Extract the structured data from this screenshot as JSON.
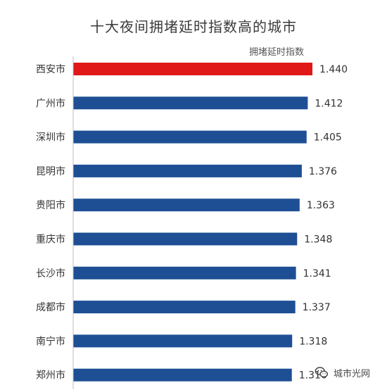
{
  "chart_data": {
    "type": "bar",
    "orientation": "horizontal",
    "title": "十大夜间拥堵延时指数高的城市",
    "legend": "拥堵延时指数",
    "categories": [
      "西安市",
      "广州市",
      "深圳市",
      "昆明市",
      "贵阳市",
      "重庆市",
      "长沙市",
      "成都市",
      "南宁市",
      "郑州市"
    ],
    "values": [
      1.44,
      1.412,
      1.405,
      1.376,
      1.363,
      1.348,
      1.341,
      1.337,
      1.318,
      1.316
    ],
    "value_labels": [
      "1.440",
      "1.412",
      "1.405",
      "1.376",
      "1.363",
      "1.348",
      "1.341",
      "1.337",
      "1.318",
      "1.316"
    ],
    "highlight_index": 0,
    "colors": {
      "bar": "#1e4f95",
      "highlight": "#e01818"
    }
  },
  "watermark": {
    "text": "城市光网",
    "icon": "wechat-icon"
  }
}
